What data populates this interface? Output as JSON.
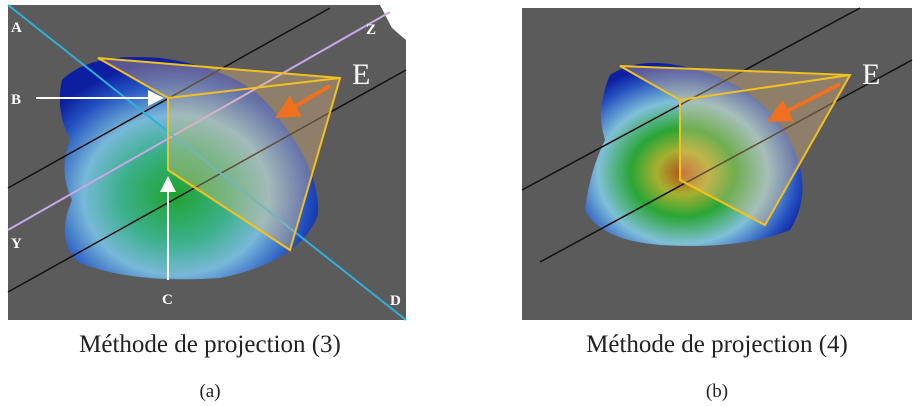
{
  "panels": [
    {
      "points": {
        "A": "A",
        "B": "B",
        "C": "C",
        "D": "D",
        "Y": "Y",
        "Z": "Z",
        "E": "E"
      },
      "caption": "Méthode de projection (3)",
      "label": "(a)"
    },
    {
      "points": {
        "E": "E"
      },
      "caption": "Méthode de projection (4)",
      "label": "(b)"
    }
  ]
}
